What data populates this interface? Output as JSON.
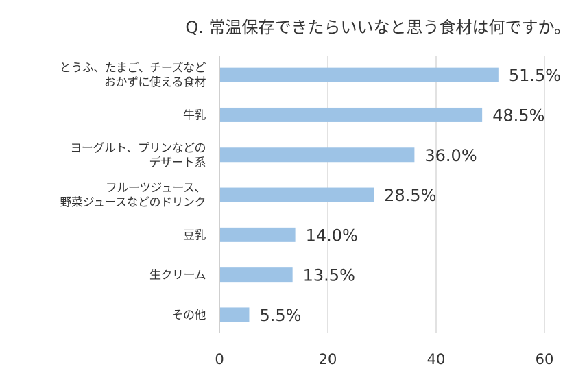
{
  "chart_data": {
    "type": "bar",
    "orientation": "horizontal",
    "title": "Q. 常温保存できたらいいなと思う食材は何ですか。",
    "categories": [
      [
        "とうふ、たまご、チーズなど",
        "おかずに使える食材"
      ],
      [
        "牛乳"
      ],
      [
        "ヨーグルト、プリンなどの",
        "デザート系"
      ],
      [
        "フルーツジュース、",
        "野菜ジュースなどのドリンク"
      ],
      [
        "豆乳"
      ],
      [
        "生クリーム"
      ],
      [
        "その他"
      ]
    ],
    "values": [
      51.5,
      48.5,
      36.0,
      28.5,
      14.0,
      13.5,
      5.5
    ],
    "value_labels": [
      "51.5%",
      "48.5%",
      "36.0%",
      "28.5%",
      "14.0%",
      "13.5%",
      "5.5%"
    ],
    "xlim": [
      0,
      60
    ],
    "xticks": [
      0,
      20,
      40,
      60
    ],
    "xtick_labels": [
      "0",
      "20",
      "40",
      "60"
    ],
    "grid": true,
    "bar_color": "#9DC3E6",
    "grid_color": "#D9D9D9",
    "text_color": "#333333",
    "axis_line_color": "#BFBFBF"
  }
}
